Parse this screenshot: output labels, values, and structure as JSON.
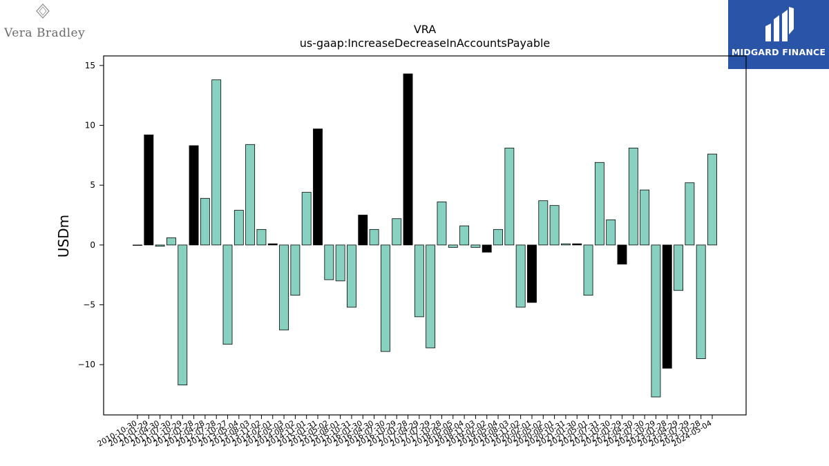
{
  "logos": {
    "left_text": "Vera Bradley",
    "right_text": "MIDGARD FINANCE"
  },
  "colors": {
    "bar_default": "#88d0c0",
    "bar_highlight": "#000000",
    "logo_right_bg": "#2a54a7"
  },
  "chart_data": {
    "type": "bar",
    "title": "VRA",
    "subtitle": "us-gaap:IncreaseDecreaseInAccountsPayable",
    "xlabel": "",
    "ylabel": "USDm",
    "ylim": [
      -14.2,
      15.8
    ],
    "yticks": [
      15,
      10,
      5,
      0,
      -5,
      -10
    ],
    "grid": false,
    "categories": [
      "2010-10-30",
      "2011-01-29",
      "2011-04-30",
      "2011-07-30",
      "2011-10-29",
      "2012-01-28",
      "2012-04-28",
      "2012-07-28",
      "2012-10-27",
      "2013-05-04",
      "2013-08-03",
      "2013-11-02",
      "2014-02-01",
      "2014-05-03",
      "2014-08-02",
      "2014-11-01",
      "2015-01-31",
      "2015-05-02",
      "2015-08-01",
      "2015-10-31",
      "2016-01-30",
      "2016-04-30",
      "2016-07-30",
      "2016-10-29",
      "2017-01-28",
      "2017-04-29",
      "2017-07-29",
      "2017-10-28",
      "2018-05-05",
      "2018-08-04",
      "2018-11-03",
      "2019-02-02",
      "2019-05-04",
      "2019-08-03",
      "2019-11-02",
      "2020-02-01",
      "2020-05-02",
      "2020-08-01",
      "2020-10-31",
      "2021-01-30",
      "2021-05-01",
      "2021-07-31",
      "2021-10-30",
      "2022-01-29",
      "2022-04-30",
      "2022-07-30",
      "2022-10-29",
      "2023-01-28",
      "2023-04-29",
      "2023-07-29",
      "2023-10-28",
      "2024-05-04"
    ],
    "values": [
      0.0,
      9.2,
      -0.1,
      0.6,
      -11.7,
      8.3,
      3.9,
      13.8,
      -8.3,
      2.9,
      8.4,
      1.3,
      0.1,
      -7.1,
      -4.2,
      4.4,
      9.7,
      -2.9,
      -3.0,
      -5.2,
      2.5,
      1.3,
      -8.9,
      2.2,
      14.3,
      -6.0,
      -8.6,
      3.6,
      -0.2,
      1.6,
      -0.2,
      -0.6,
      1.3,
      8.1,
      -5.2,
      -4.8,
      3.7,
      3.3,
      0.1,
      0.1,
      -4.2,
      6.9,
      2.1,
      -1.6,
      8.1,
      4.6,
      -12.7,
      -10.3,
      -3.8,
      5.2,
      -9.5,
      7.6
    ],
    "highlighted": [
      false,
      true,
      false,
      false,
      false,
      true,
      false,
      false,
      false,
      false,
      false,
      false,
      true,
      false,
      false,
      false,
      true,
      false,
      false,
      false,
      true,
      false,
      false,
      false,
      true,
      false,
      false,
      false,
      false,
      false,
      false,
      true,
      false,
      false,
      false,
      true,
      false,
      false,
      false,
      true,
      false,
      false,
      false,
      true,
      false,
      false,
      false,
      true,
      false,
      false,
      false,
      false
    ]
  }
}
